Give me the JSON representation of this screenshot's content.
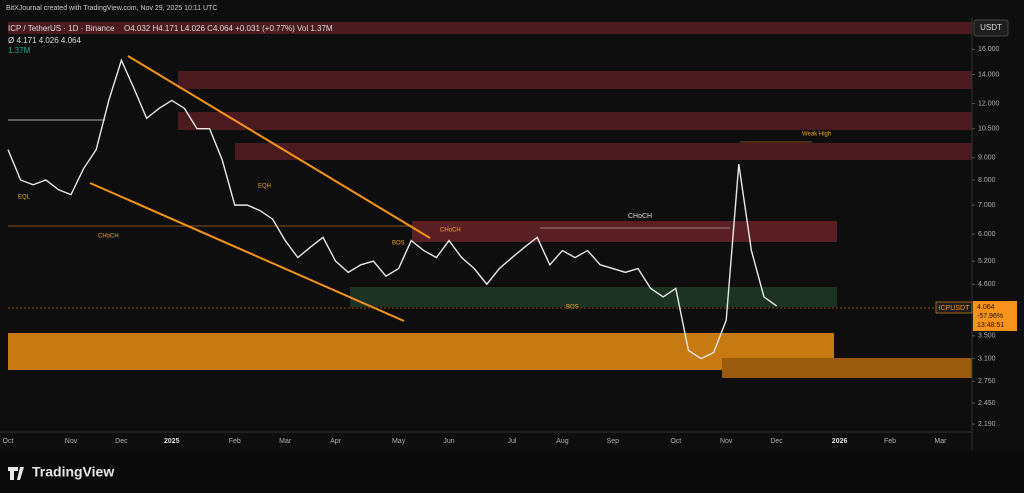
{
  "chart_data": {
    "type": "line",
    "watermark": "BitXJournal created with TradingView.com, Nov 29, 2025 10:11 UTC",
    "symbol": "ICP / TetherUS · 1D · Binance",
    "ohlc_text": "O4.032 H4.171 L4.026 C4.064 +0.031 (+0.77%) Vol 1.37M",
    "ohlc_row2": "Ø 4.171 4.026 4.064",
    "volume_text": "1.37M",
    "currency": "USDT",
    "price_tag": {
      "symbol": "ICPUSDT",
      "price": "4.064",
      "change": "-57.96%",
      "countdown": "13:48:51"
    },
    "brand": "TradingView",
    "annotations": [
      "CHoCH",
      "CHoCH",
      "BOS",
      "Weak High",
      "EQL",
      "EQH",
      "CHoCH",
      "BOS"
    ],
    "log_scale": true,
    "grid": false,
    "categories": [
      "Oct",
      null,
      null,
      null,
      null,
      "Nov",
      null,
      null,
      null,
      "Dec",
      null,
      null,
      null,
      "2025",
      null,
      null,
      null,
      null,
      "Feb",
      null,
      null,
      null,
      "Mar",
      null,
      null,
      null,
      "Apr",
      null,
      null,
      null,
      null,
      "May",
      null,
      null,
      null,
      "Jun",
      null,
      null,
      null,
      null,
      "Jul",
      null,
      null,
      null,
      "Aug",
      null,
      null,
      null,
      "Sep",
      null,
      null,
      null,
      null,
      "Oct",
      null,
      null,
      null,
      "Nov",
      null,
      null,
      null,
      "Dec",
      null,
      null,
      null,
      null,
      "2026",
      null,
      null,
      null,
      "Feb",
      null,
      null,
      null,
      "Mar",
      null
    ],
    "series": [
      {
        "name": "ICPUSDT",
        "color": "#e8e8e8",
        "values": [
          9.4,
          8.0,
          7.8,
          8.0,
          7.6,
          7.4,
          8.5,
          9.4,
          12.2,
          15.1,
          13.0,
          11.1,
          11.7,
          12.2,
          11.7,
          10.5,
          10.5,
          8.9,
          7.0,
          7.0,
          6.8,
          6.5,
          5.8,
          5.3,
          5.6,
          5.9,
          5.2,
          4.9,
          5.1,
          5.2,
          4.8,
          5.0,
          5.8,
          5.5,
          5.3,
          5.8,
          5.3,
          5.0,
          4.6,
          5.0,
          5.3,
          5.6,
          5.9,
          5.1,
          5.5,
          5.3,
          5.5,
          5.1,
          5.0,
          4.9,
          5.0,
          4.5,
          4.3,
          4.5,
          3.24,
          3.1,
          3.2,
          3.8,
          8.7,
          5.5,
          4.3,
          4.1,
          null,
          null,
          null,
          null,
          null,
          null,
          null,
          null,
          null,
          null,
          null,
          null,
          null,
          null
        ]
      }
    ],
    "ylim": [
      2.1,
      18.5
    ],
    "yticks": [
      {
        "value": 2.19,
        "label": "2.190"
      },
      {
        "value": 2.45,
        "label": "2.450"
      },
      {
        "value": 2.75,
        "label": "2.750"
      },
      {
        "value": 3.1,
        "label": "3.100"
      },
      {
        "value": 3.5,
        "label": "3.500"
      },
      {
        "value": 4.6,
        "label": "4.600"
      },
      {
        "value": 5.2,
        "label": "5.200"
      },
      {
        "value": 6,
        "label": "6.000"
      },
      {
        "value": 7,
        "label": "7.000"
      },
      {
        "value": 8,
        "label": "8.000"
      },
      {
        "value": 9,
        "label": "9.000"
      },
      {
        "value": 10.5,
        "label": "10.500"
      },
      {
        "value": 12,
        "label": "12.000"
      },
      {
        "value": 14,
        "label": "14.000"
      },
      {
        "value": 16,
        "label": "16.000"
      }
    ]
  }
}
